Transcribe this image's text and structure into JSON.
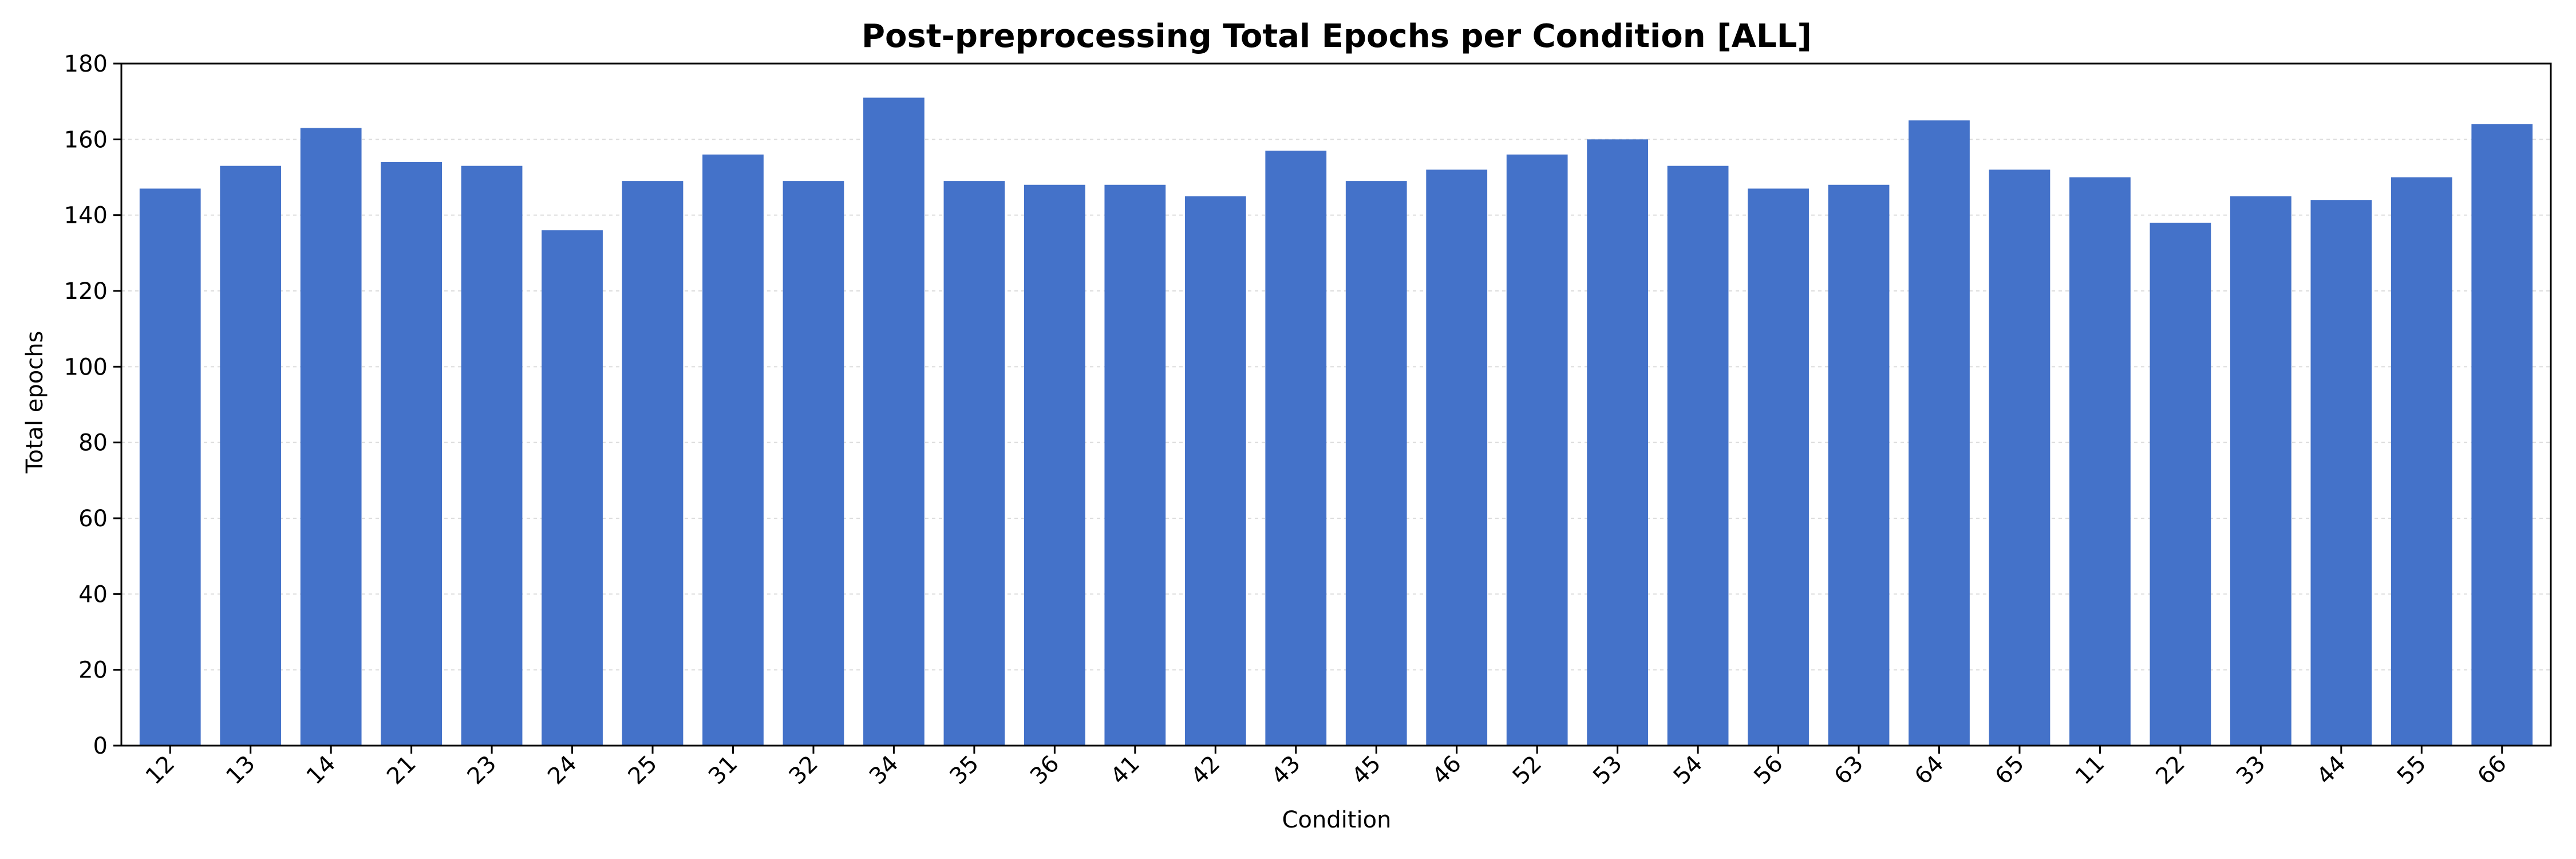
{
  "chart_data": {
    "type": "bar",
    "title": "Post-preprocessing Total Epochs per Condition [ALL]",
    "xlabel": "Condition",
    "ylabel": "Total epochs",
    "ylim": [
      0,
      180
    ],
    "yticks": [
      0,
      20,
      40,
      60,
      80,
      100,
      120,
      140,
      160,
      180
    ],
    "grid": "horizontal dashed",
    "bar_color": "#4472c9",
    "categories": [
      "12",
      "13",
      "14",
      "21",
      "23",
      "24",
      "25",
      "31",
      "32",
      "34",
      "35",
      "36",
      "41",
      "42",
      "43",
      "45",
      "46",
      "52",
      "53",
      "54",
      "56",
      "63",
      "64",
      "65",
      "11",
      "22",
      "33",
      "44",
      "55",
      "66"
    ],
    "values": [
      147,
      153,
      163,
      154,
      153,
      136,
      149,
      156,
      149,
      171,
      149,
      148,
      148,
      145,
      157,
      149,
      152,
      156,
      160,
      153,
      147,
      148,
      165,
      152,
      150,
      138,
      145,
      144,
      150,
      164
    ]
  }
}
